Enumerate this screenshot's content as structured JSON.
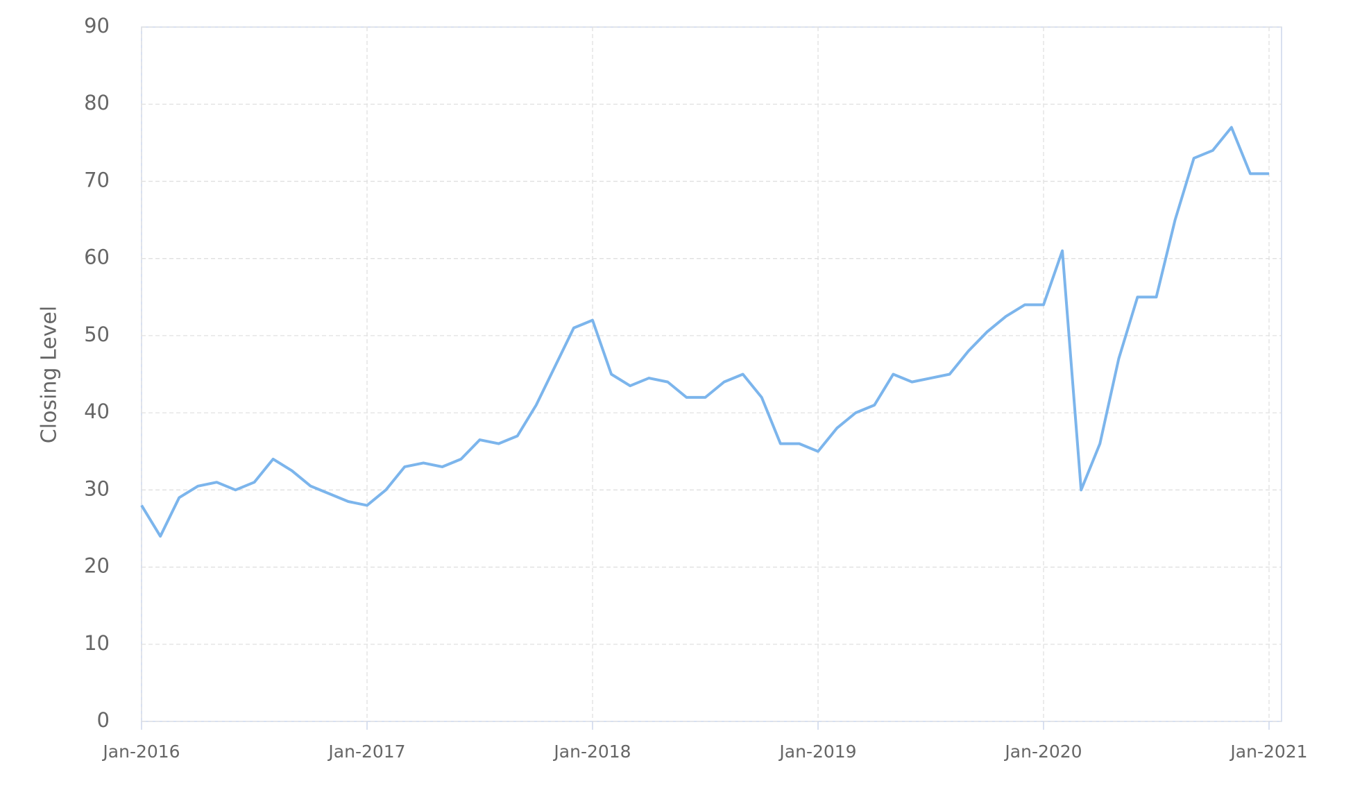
{
  "chart_data": {
    "type": "line",
    "y_label": "Closing Level",
    "x": [
      "2016-01",
      "2016-02",
      "2016-03",
      "2016-04",
      "2016-05",
      "2016-06",
      "2016-07",
      "2016-08",
      "2016-09",
      "2016-10",
      "2016-11",
      "2016-12",
      "2017-01",
      "2017-02",
      "2017-03",
      "2017-04",
      "2017-05",
      "2017-06",
      "2017-07",
      "2017-08",
      "2017-09",
      "2017-10",
      "2017-11",
      "2017-12",
      "2018-01",
      "2018-02",
      "2018-03",
      "2018-04",
      "2018-05",
      "2018-06",
      "2018-07",
      "2018-08",
      "2018-09",
      "2018-10",
      "2018-11",
      "2018-12",
      "2019-01",
      "2019-02",
      "2019-03",
      "2019-04",
      "2019-05",
      "2019-06",
      "2019-07",
      "2019-08",
      "2019-09",
      "2019-10",
      "2019-11",
      "2019-12",
      "2020-01",
      "2020-02",
      "2020-03",
      "2020-04",
      "2020-05",
      "2020-06",
      "2020-07",
      "2020-08",
      "2020-09",
      "2020-10",
      "2020-11",
      "2020-12",
      "2021-01"
    ],
    "series": [
      {
        "color": "#7cb5ec",
        "values": [
          28,
          24,
          29,
          30.5,
          31,
          30,
          31,
          34,
          32.5,
          30.5,
          29.5,
          28.5,
          28,
          30,
          33,
          33.5,
          33,
          34,
          36.5,
          36,
          37,
          41,
          46,
          51,
          52,
          45,
          43.5,
          44.5,
          44,
          42,
          42,
          44,
          45,
          42,
          36,
          36,
          35,
          38,
          40,
          41,
          45,
          44,
          44.5,
          45,
          48,
          50.5,
          52.5,
          54,
          54,
          61,
          30,
          36,
          47,
          55,
          55,
          65,
          73,
          74,
          77,
          71,
          71
        ]
      }
    ],
    "xlim": [
      "2016-01",
      "2021-01"
    ],
    "xticks": [
      {
        "value": "2016-01",
        "label": "Jan-2016"
      },
      {
        "value": "2017-01",
        "label": "Jan-2017"
      },
      {
        "value": "2018-01",
        "label": "Jan-2018"
      },
      {
        "value": "2019-01",
        "label": "Jan-2019"
      },
      {
        "value": "2020-01",
        "label": "Jan-2020"
      },
      {
        "value": "2021-01",
        "label": "Jan-2021"
      }
    ],
    "ylim": [
      0,
      90
    ],
    "yticks": [
      0,
      10,
      20,
      30,
      40,
      50,
      60,
      70,
      80,
      90
    ],
    "grid": true
  }
}
